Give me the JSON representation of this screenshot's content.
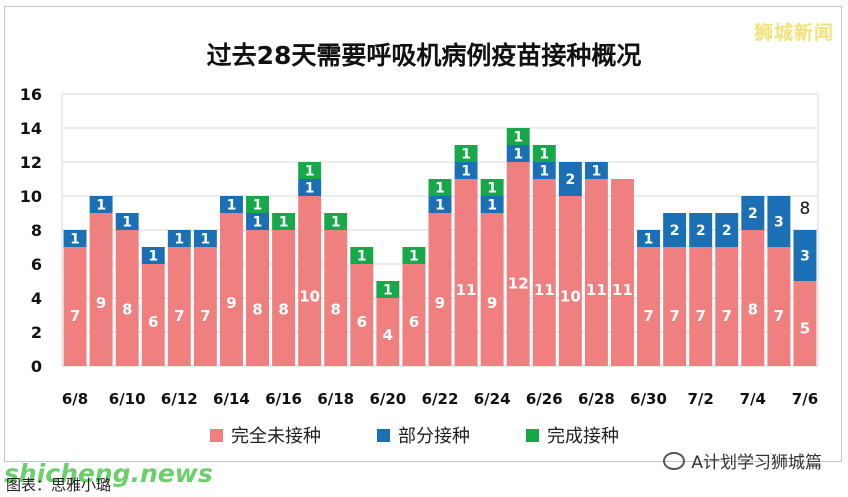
{
  "brand": "狮城新闻",
  "watermark_left": "shicheng.news",
  "wechat_credit": "A计划学习狮城篇",
  "footnote": "图表：思雅小璐",
  "colors": {
    "unvaccinated": "#f08080",
    "partial": "#1a6fb5",
    "full": "#17a84a",
    "grid": "#d9d9d9"
  },
  "chart_data": {
    "type": "bar",
    "stacked": true,
    "title": "过去28天需要呼吸机病例疫苗接种概况",
    "categories": [
      "6/8",
      "6/9",
      "6/10",
      "6/11",
      "6/12",
      "6/13",
      "6/14",
      "6/15",
      "6/16",
      "6/17",
      "6/18",
      "6/19",
      "6/20",
      "6/21",
      "6/22",
      "6/23",
      "6/24",
      "6/25",
      "6/26",
      "6/27",
      "6/28",
      "6/29",
      "6/30",
      "7/1",
      "7/2",
      "7/3",
      "7/4",
      "7/5",
      "7/6"
    ],
    "x_tick_labels": [
      "6/8",
      "",
      "6/10",
      "",
      "6/12",
      "",
      "6/14",
      "",
      "6/16",
      "",
      "6/18",
      "",
      "6/20",
      "",
      "6/22",
      "",
      "6/24",
      "",
      "6/26",
      "",
      "6/28",
      "",
      "6/30",
      "",
      "7/2",
      "",
      "7/4",
      "",
      "7/6"
    ],
    "series": [
      {
        "name": "完全未接种",
        "values": [
          7,
          9,
          8,
          6,
          7,
          7,
          9,
          8,
          8,
          10,
          8,
          6,
          4,
          6,
          9,
          11,
          9,
          12,
          11,
          10,
          11,
          11,
          7,
          7,
          7,
          7,
          8,
          7,
          5
        ]
      },
      {
        "name": "部分接种",
        "values": [
          1,
          1,
          1,
          1,
          1,
          1,
          1,
          1,
          0,
          1,
          0,
          0,
          0,
          0,
          1,
          1,
          1,
          1,
          1,
          2,
          1,
          0,
          1,
          2,
          2,
          2,
          2,
          3,
          3
        ]
      },
      {
        "name": "完成接种",
        "values": [
          0,
          0,
          0,
          0,
          0,
          0,
          0,
          1,
          1,
          1,
          1,
          1,
          1,
          1,
          1,
          1,
          1,
          1,
          1,
          0,
          0,
          0,
          0,
          0,
          0,
          0,
          0,
          0,
          0
        ]
      }
    ],
    "annotations": [
      {
        "category": "7/6",
        "text": "8"
      }
    ],
    "y_ticks": [
      0,
      2,
      4,
      6,
      8,
      10,
      12,
      14,
      16
    ],
    "ylim": [
      0,
      16
    ],
    "grid": true,
    "legend": "bottom"
  }
}
